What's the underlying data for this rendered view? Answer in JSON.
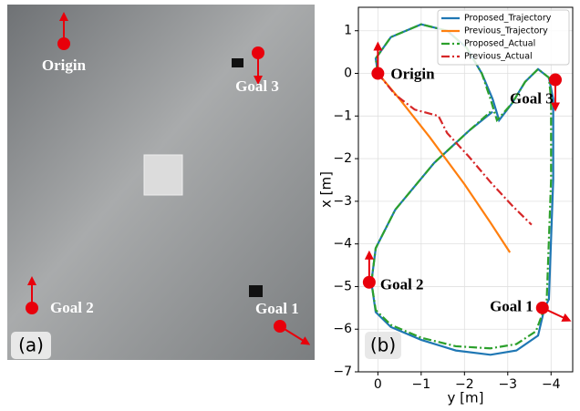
{
  "photo": {
    "labels": [
      "Origin",
      "Goal 3",
      "Goal 2",
      "Goal 1"
    ],
    "panel_label": "(a)"
  },
  "chart_data": {
    "type": "line",
    "panel_label": "(b)",
    "xlabel": "y [m]",
    "ylabel": "x [m]",
    "xlim": [
      0.45,
      -4.5
    ],
    "ylim": [
      -7,
      1.55
    ],
    "xticks": [
      0,
      {
        "value": -1,
        "label": "−1"
      },
      {
        "value": -2,
        "label": "−2"
      },
      {
        "value": -3,
        "label": "−3"
      },
      {
        "value": -4,
        "label": "−4"
      }
    ],
    "yticks": [
      1,
      0,
      {
        "value": -1,
        "label": "−1"
      },
      {
        "value": -2,
        "label": "−2"
      },
      {
        "value": -3,
        "label": "−3"
      },
      {
        "value": -4,
        "label": "−4"
      },
      {
        "value": -5,
        "label": "−5"
      },
      {
        "value": -6,
        "label": "−6"
      },
      {
        "value": -7,
        "label": "−7"
      }
    ],
    "grid": true,
    "legend": "upper right",
    "series": [
      {
        "name": "Proposed_Trajectory",
        "color": "#1f77b4",
        "dash": "solid",
        "x": [
          0,
          0.05,
          -0.3,
          -1,
          -1.6,
          -2.05,
          -2.4,
          -2.65,
          -2.8,
          -3.1,
          -3.4,
          -3.7,
          -3.95,
          -4.05,
          -4.05,
          -3.95,
          -3.85,
          -3.7,
          -3.2,
          -2.6,
          -1.8,
          -1.0,
          -0.3,
          0.05,
          0.15,
          0.05,
          -0.4,
          -1.3,
          -2.1,
          -2.65
        ],
        "values": [
          0,
          0.35,
          0.85,
          1.15,
          1.0,
          0.6,
          0,
          -0.6,
          -1.1,
          -0.7,
          -0.2,
          0.1,
          -0.1,
          -0.6,
          -2.5,
          -5.3,
          -5.5,
          -6.15,
          -6.5,
          -6.6,
          -6.5,
          -6.25,
          -5.95,
          -5.6,
          -4.9,
          -4.1,
          -3.2,
          -2.1,
          -1.35,
          -0.9
        ]
      },
      {
        "name": "Previous_Trajectory",
        "color": "#ff7f0e",
        "dash": "solid",
        "x": [
          0,
          -0.5,
          -1.2,
          -2,
          -2.6,
          -3.05
        ],
        "values": [
          0,
          -0.6,
          -1.5,
          -2.6,
          -3.5,
          -4.2
        ]
      },
      {
        "name": "Proposed_Actual",
        "color": "#2ca02c",
        "dash": "dashdot",
        "x": [
          0,
          0.05,
          -0.3,
          -1,
          -1.6,
          -2.05,
          -2.4,
          -2.6,
          -2.75,
          -3.1,
          -3.4,
          -3.7,
          -3.95,
          -4.0,
          -4.0,
          -3.9,
          -3.85,
          -3.65,
          -3.2,
          -2.6,
          -1.8,
          -1.0,
          -0.3,
          0.05,
          0.15,
          0.05,
          -0.4,
          -1.3,
          -2.1,
          -2.6
        ],
        "values": [
          0,
          0.35,
          0.85,
          1.15,
          1.0,
          0.6,
          0,
          -0.6,
          -1.1,
          -0.7,
          -0.2,
          0.1,
          -0.1,
          -0.6,
          -2.5,
          -5.3,
          -5.5,
          -6.05,
          -6.35,
          -6.45,
          -6.4,
          -6.2,
          -5.9,
          -5.55,
          -4.9,
          -4.1,
          -3.2,
          -2.1,
          -1.35,
          -0.9
        ]
      },
      {
        "name": "Previous_Actual",
        "color": "#d62728",
        "dash": "dashdot",
        "x": [
          0,
          -0.4,
          -0.85,
          -1.4,
          -1.6,
          -2.1,
          -2.6,
          -3.1,
          -3.55
        ],
        "values": [
          0,
          -0.5,
          -0.85,
          -1.0,
          -1.4,
          -1.95,
          -2.55,
          -3.1,
          -3.55
        ]
      }
    ],
    "goals": {
      "names": [
        "Origin",
        "Goal 3",
        "Goal 2",
        "Goal 1"
      ],
      "color": "#e8000b",
      "x": [
        0,
        -4.1,
        0.2,
        -3.8
      ],
      "values": [
        0,
        -0.15,
        -4.9,
        -5.5
      ],
      "headings": [
        90,
        -90,
        90,
        -25
      ]
    }
  }
}
